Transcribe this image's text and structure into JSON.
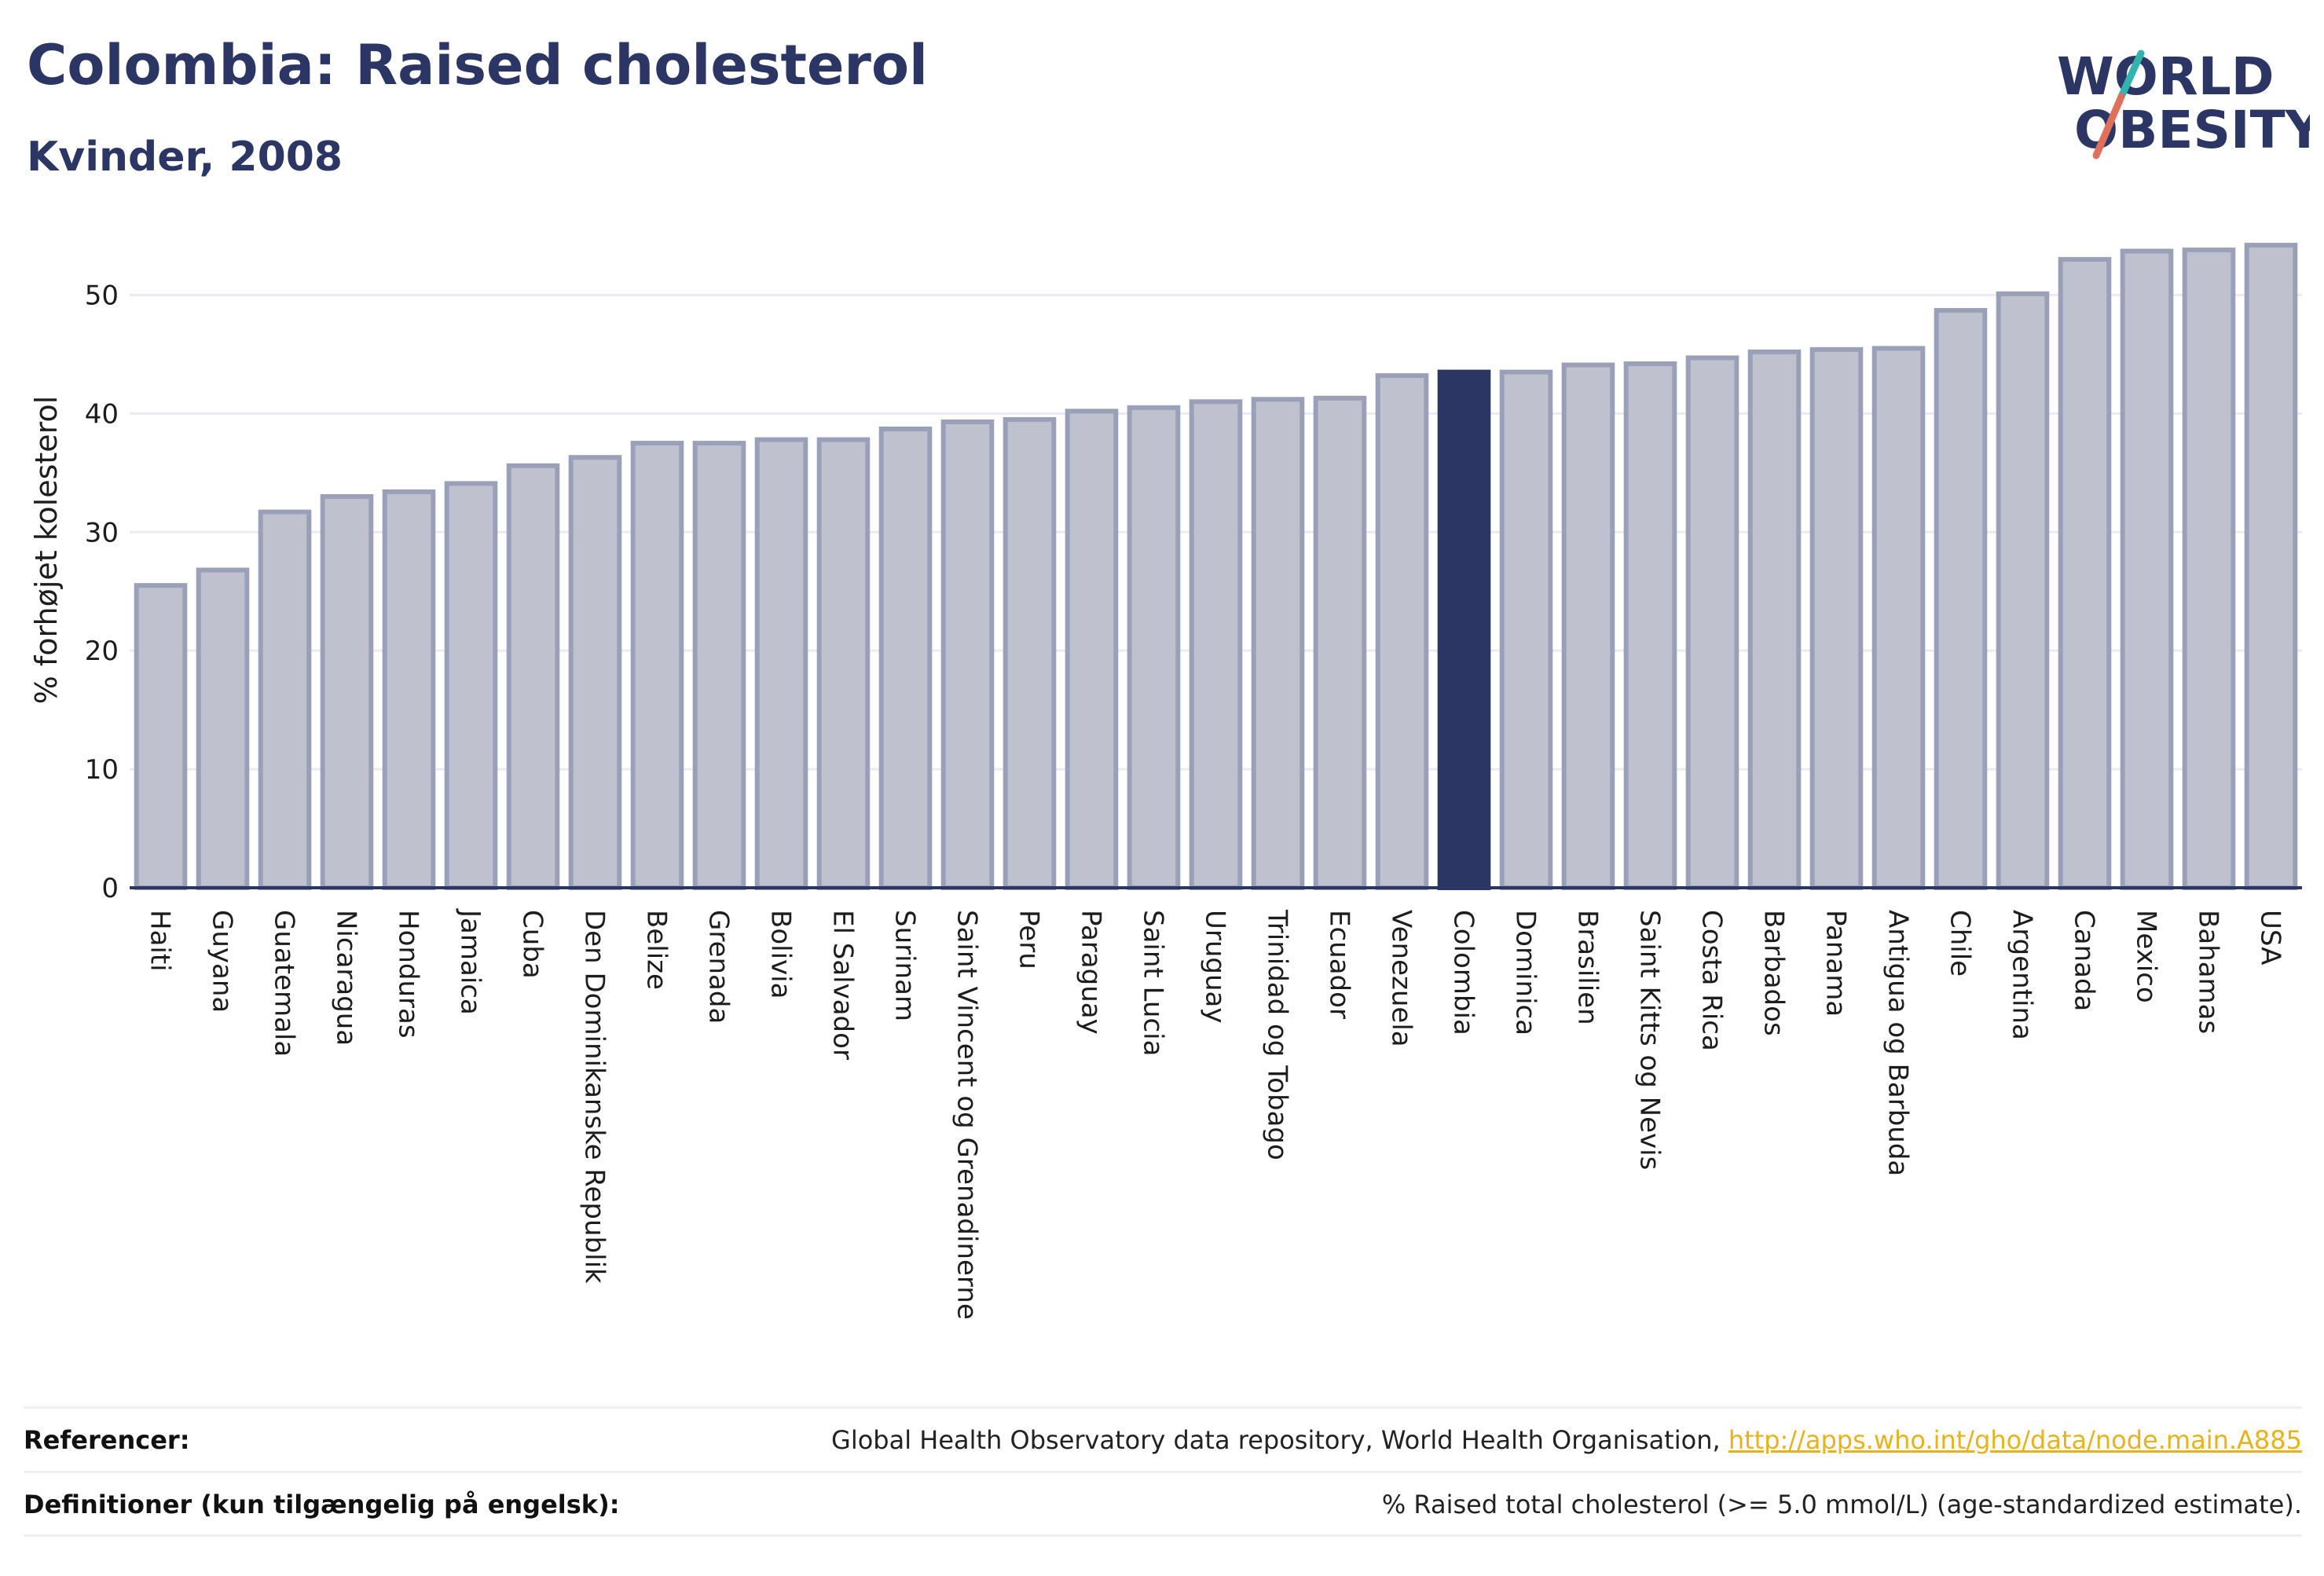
{
  "header": {
    "title": "Colombia: Raised cholesterol",
    "subtitle": "Kvinder, 2008"
  },
  "logo": {
    "line1": "WORLD",
    "line2": "OBESITY"
  },
  "chart_data": {
    "type": "bar",
    "ylabel": "% forhøjet kolesterol",
    "ylim": [
      0,
      55
    ],
    "yticks": [
      0,
      10,
      20,
      30,
      40,
      50
    ],
    "grid": true,
    "highlight": "Colombia",
    "colors": {
      "bar": "#bfc2ce",
      "bar_border": "#9aa0b8",
      "highlight": "#2b3664",
      "grid": "#e9ebf1"
    },
    "categories": [
      "Haiti",
      "Guyana",
      "Guatemala",
      "Nicaragua",
      "Honduras",
      "Jamaica",
      "Cuba",
      "Den Dominikanske Republik",
      "Belize",
      "Grenada",
      "Bolivia",
      "El Salvador",
      "Surinam",
      "Saint Vincent og Grenadinerne",
      "Peru",
      "Paraguay",
      "Saint Lucia",
      "Uruguay",
      "Trinidad og Tobago",
      "Ecuador",
      "Venezuela",
      "Colombia",
      "Dominica",
      "Brasilien",
      "Saint Kitts og Nevis",
      "Costa Rica",
      "Barbados",
      "Panama",
      "Antigua og Barbuda",
      "Chile",
      "Argentina",
      "Canada",
      "Mexico",
      "Bahamas",
      "USA"
    ],
    "values": [
      25.5,
      26.8,
      31.7,
      33.0,
      33.4,
      34.1,
      35.6,
      36.3,
      37.5,
      37.5,
      37.8,
      37.8,
      38.7,
      39.3,
      39.5,
      40.2,
      40.5,
      41.0,
      41.2,
      41.3,
      43.2,
      43.5,
      43.5,
      44.1,
      44.2,
      44.7,
      45.2,
      45.4,
      45.5,
      48.7,
      50.1,
      53.0,
      53.7,
      53.8,
      54.2
    ]
  },
  "footer": {
    "references_label": "Referencer:",
    "references_text": "Global Health Observatory data repository, World Health Organisation, ",
    "references_link": "http://apps.who.int/gho/data/node.main.A885",
    "definitions_label": "Definitioner (kun tilgængelig på engelsk):",
    "definitions_text": "% Raised total cholesterol (>= 5.0 mmol/L) (age-standardized estimate)."
  }
}
